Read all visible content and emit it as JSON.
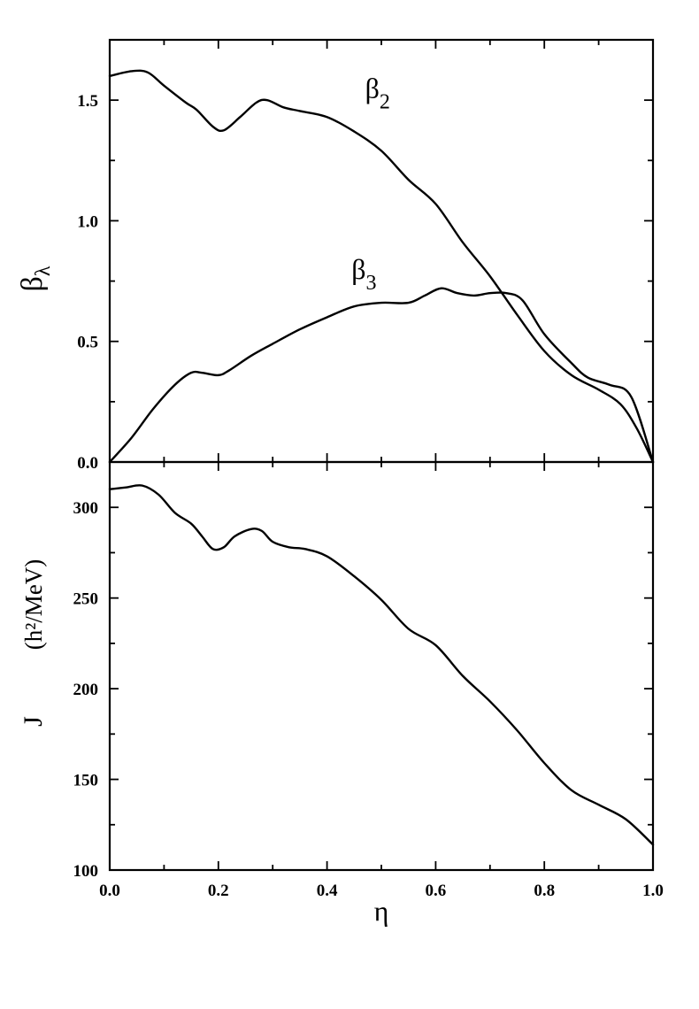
{
  "chart_data": [
    {
      "type": "line",
      "panel": "top",
      "xlabel": "η",
      "ylabel": {
        "main": "β",
        "sub": "λ"
      },
      "xlim": [
        0.0,
        1.0
      ],
      "ylim": [
        0.0,
        1.75
      ],
      "yticks": [
        0.0,
        0.5,
        1.0,
        1.5
      ],
      "ytick_labels": [
        "0.0",
        "0.5",
        "1.0",
        "1.5"
      ],
      "y_minor_step": 0.25,
      "series": [
        {
          "name": "β₂",
          "label": {
            "main": "β",
            "sub": "2"
          },
          "x": [
            0.0,
            0.04,
            0.07,
            0.1,
            0.14,
            0.16,
            0.19,
            0.21,
            0.24,
            0.27,
            0.29,
            0.32,
            0.35,
            0.4,
            0.45,
            0.5,
            0.55,
            0.6,
            0.65,
            0.7,
            0.75,
            0.8,
            0.85,
            0.9,
            0.94,
            0.97,
            1.0
          ],
          "y": [
            1.6,
            1.62,
            1.615,
            1.56,
            1.49,
            1.46,
            1.39,
            1.375,
            1.43,
            1.49,
            1.5,
            1.47,
            1.455,
            1.43,
            1.37,
            1.29,
            1.17,
            1.07,
            0.91,
            0.77,
            0.61,
            0.46,
            0.36,
            0.3,
            0.24,
            0.14,
            0.0
          ]
        },
        {
          "name": "β₃",
          "label": {
            "main": "β",
            "sub": "3"
          },
          "x": [
            0.0,
            0.04,
            0.08,
            0.12,
            0.15,
            0.17,
            0.2,
            0.22,
            0.26,
            0.3,
            0.35,
            0.4,
            0.45,
            0.5,
            0.55,
            0.58,
            0.61,
            0.64,
            0.67,
            0.7,
            0.73,
            0.76,
            0.8,
            0.85,
            0.88,
            0.92,
            0.96,
            1.0
          ],
          "y": [
            0.0,
            0.1,
            0.22,
            0.32,
            0.37,
            0.37,
            0.36,
            0.38,
            0.44,
            0.49,
            0.55,
            0.6,
            0.645,
            0.66,
            0.66,
            0.69,
            0.72,
            0.7,
            0.69,
            0.7,
            0.7,
            0.67,
            0.53,
            0.41,
            0.35,
            0.32,
            0.27,
            0.0
          ]
        }
      ]
    },
    {
      "type": "line",
      "panel": "bottom",
      "xlabel": "η",
      "ylabel": {
        "symbol": "J",
        "unit": "(h²/MeV)"
      },
      "xlim": [
        0.0,
        1.0
      ],
      "ylim": [
        100,
        325
      ],
      "xticks": [
        0.0,
        0.2,
        0.4,
        0.6,
        0.8,
        1.0
      ],
      "xtick_labels": [
        "0.0",
        "0.2",
        "0.4",
        "0.6",
        "0.8",
        "1.0"
      ],
      "yticks": [
        100,
        150,
        200,
        250,
        300
      ],
      "ytick_labels": [
        "100",
        "150",
        "200",
        "250",
        "300"
      ],
      "y_minor_step": 25,
      "series": [
        {
          "name": "J",
          "x": [
            0.0,
            0.03,
            0.06,
            0.09,
            0.12,
            0.15,
            0.17,
            0.19,
            0.21,
            0.23,
            0.26,
            0.28,
            0.3,
            0.33,
            0.36,
            0.4,
            0.45,
            0.5,
            0.55,
            0.6,
            0.65,
            0.7,
            0.75,
            0.8,
            0.85,
            0.9,
            0.95,
            1.0
          ],
          "y": [
            310,
            311,
            312,
            307,
            297,
            291,
            284,
            277,
            278,
            284,
            288,
            287,
            281,
            278,
            277,
            273,
            262,
            249,
            233,
            224,
            207,
            193,
            177,
            159,
            144,
            136,
            128,
            114
          ]
        }
      ]
    }
  ]
}
